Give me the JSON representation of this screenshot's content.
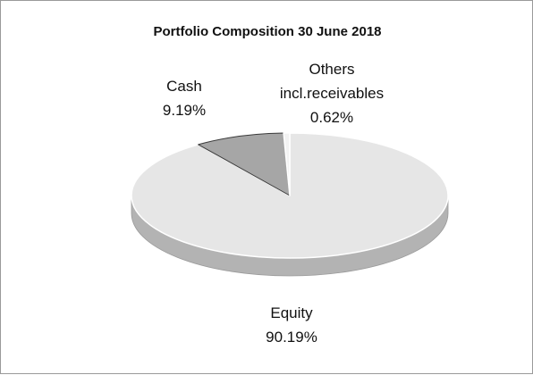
{
  "chart_data": {
    "type": "pie",
    "title": "Portfolio Composition 30 June 2018",
    "categories": [
      "Equity",
      "Cash",
      "Others incl.receivables"
    ],
    "values": [
      90.19,
      9.19,
      0.62
    ],
    "value_labels": [
      "90.19%",
      "9.19%",
      "0.62%"
    ],
    "colors": [
      "#e6e6e6",
      "#a6a6a6",
      "#f2f2f2"
    ]
  }
}
